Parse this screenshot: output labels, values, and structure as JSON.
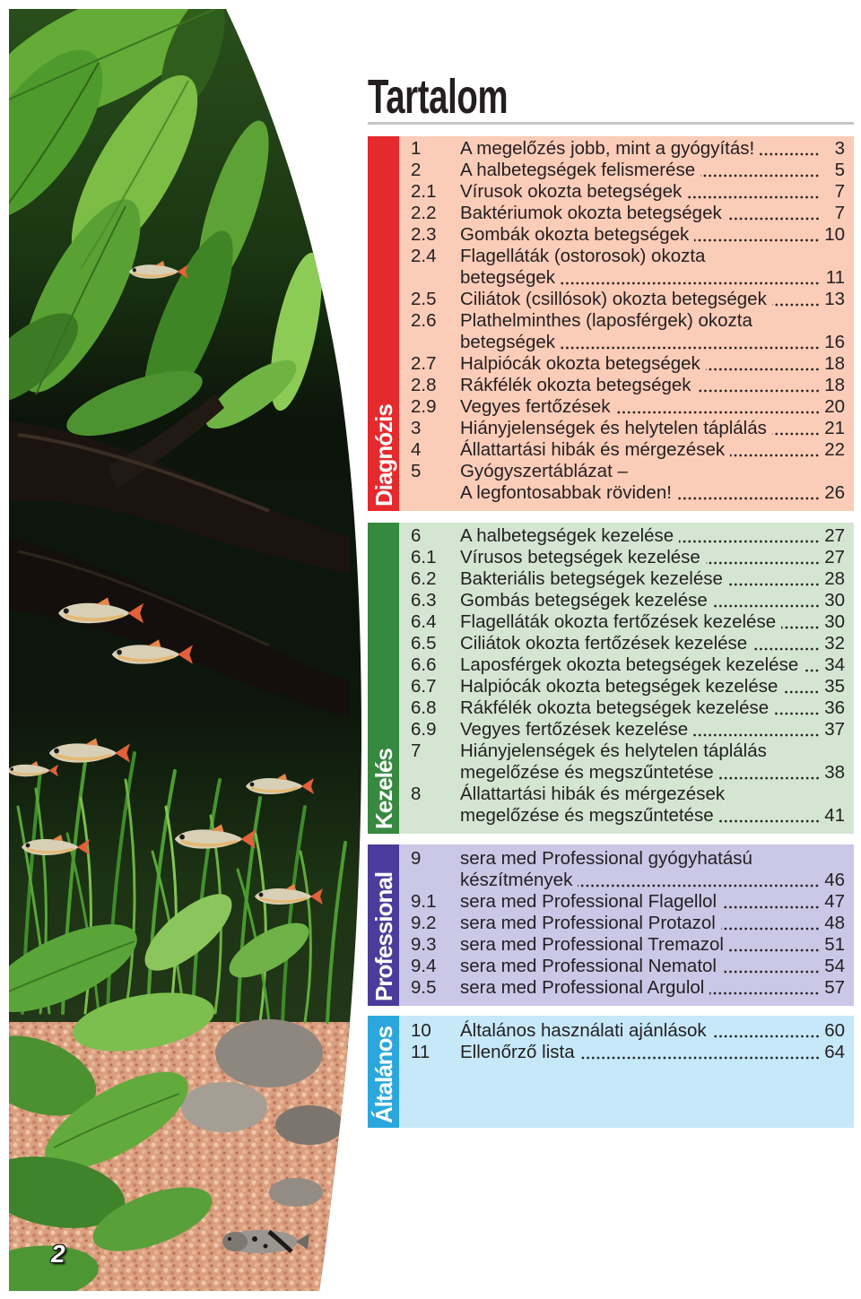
{
  "page_title": "Tartalom",
  "page_number": "2",
  "sections": [
    {
      "tab": "Diagnózis",
      "tab_color": "#e42a2d",
      "box_color": "#fbccb8",
      "entries": [
        {
          "num": "1",
          "lines": [
            "A megelőzés jobb, mint a gyógyítás!"
          ],
          "page": "3"
        },
        {
          "num": "2",
          "lines": [
            "A halbetegségek felismerése"
          ],
          "page": "5"
        },
        {
          "num": "2.1",
          "lines": [
            "Vírusok okozta betegségek"
          ],
          "page": "7"
        },
        {
          "num": "2.2",
          "lines": [
            "Baktériumok okozta betegségek"
          ],
          "page": "7"
        },
        {
          "num": "2.3",
          "lines": [
            "Gombák okozta betegségek"
          ],
          "page": "10"
        },
        {
          "num": "2.4",
          "lines": [
            "Flagelláták (ostorosok) okozta",
            "betegségek"
          ],
          "page": "11"
        },
        {
          "num": "2.5",
          "lines": [
            "Ciliátok (csillósok) okozta betegségek"
          ],
          "page": "13"
        },
        {
          "num": "2.6",
          "lines": [
            "Plathelminthes (laposférgek) okozta",
            "betegségek"
          ],
          "page": "16"
        },
        {
          "num": "2.7",
          "lines": [
            "Halpiócák okozta betegségek"
          ],
          "page": "18"
        },
        {
          "num": "2.8",
          "lines": [
            "Rákfélék okozta betegségek"
          ],
          "page": "18"
        },
        {
          "num": "2.9",
          "lines": [
            "Vegyes fertőzések"
          ],
          "page": "20"
        },
        {
          "num": "3",
          "lines": [
            "Hiányjelenségek és helytelen táplálás"
          ],
          "page": "21"
        },
        {
          "num": "4",
          "lines": [
            "Állattartási hibák és mérgezések"
          ],
          "page": "22"
        },
        {
          "num": "5",
          "lines": [
            "Gyógyszertáblázat –",
            "A legfontosabbak röviden!"
          ],
          "page": "26"
        }
      ]
    },
    {
      "tab": "Kezelés",
      "tab_color": "#36893f",
      "box_color": "#d4e6d2",
      "entries": [
        {
          "num": "6",
          "lines": [
            "A halbetegségek kezelése"
          ],
          "page": "27"
        },
        {
          "num": "6.1",
          "lines": [
            "Vírusos betegségek kezelése"
          ],
          "page": "27"
        },
        {
          "num": "6.2",
          "lines": [
            "Bakteriális betegségek kezelése"
          ],
          "page": "28"
        },
        {
          "num": "6.3",
          "lines": [
            "Gombás betegségek kezelése"
          ],
          "page": "30"
        },
        {
          "num": "6.4",
          "lines": [
            "Flagelláták okozta fertőzések kezelése"
          ],
          "page": "30"
        },
        {
          "num": "6.5",
          "lines": [
            "Ciliátok okozta fertőzések kezelése"
          ],
          "page": "32"
        },
        {
          "num": "6.6",
          "lines": [
            "Laposférgek okozta betegségek kezelése"
          ],
          "page": "34"
        },
        {
          "num": "6.7",
          "lines": [
            "Halpiócák okozta betegségek kezelése"
          ],
          "page": "35"
        },
        {
          "num": "6.8",
          "lines": [
            "Rákfélék okozta betegségek kezelése"
          ],
          "page": "36"
        },
        {
          "num": "6.9",
          "lines": [
            "Vegyes fertőzések kezelése"
          ],
          "page": "37"
        },
        {
          "num": "7",
          "lines": [
            "Hiányjelenségek és helytelen táplálás",
            "megelőzése és megszűntetése"
          ],
          "page": "38"
        },
        {
          "num": "8",
          "lines": [
            "Állattartási hibák és mérgezések",
            "megelőzése és megszűntetése"
          ],
          "page": "41"
        }
      ]
    },
    {
      "tab": "Professional",
      "tab_color": "#4b3c9c",
      "box_color": "#cbc7e7",
      "entries": [
        {
          "num": "9",
          "lines": [
            "sera med Professional gyógyhatású",
            "készítmények"
          ],
          "page": "46"
        },
        {
          "num": "9.1",
          "lines": [
            "sera med Professional Flagellol"
          ],
          "page": "47"
        },
        {
          "num": "9.2",
          "lines": [
            "sera med Professional Protazol"
          ],
          "page": "48"
        },
        {
          "num": "9.3",
          "lines": [
            "sera med Professional Tremazol"
          ],
          "page": "51"
        },
        {
          "num": "9.4",
          "lines": [
            "sera med Professional Nematol"
          ],
          "page": "54"
        },
        {
          "num": "9.5",
          "lines": [
            "sera med Professional Argulol"
          ],
          "page": "57"
        }
      ]
    },
    {
      "tab": "Általános",
      "tab_color": "#2ba7de",
      "box_color": "#c6e8f8",
      "entries": [
        {
          "num": "10",
          "lines": [
            "Általános használati ajánlások"
          ],
          "page": "60"
        },
        {
          "num": "11",
          "lines": [
            "Ellenőrző lista"
          ],
          "page": "64"
        }
      ]
    }
  ]
}
